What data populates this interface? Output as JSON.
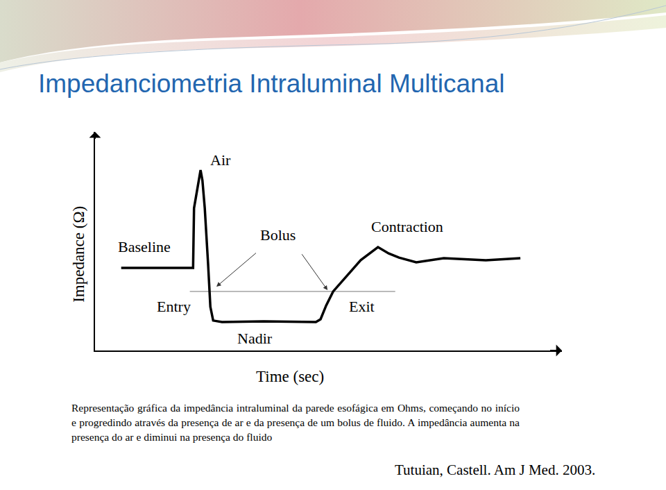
{
  "slide": {
    "title": "Impedanciometria Intraluminal Multicanal",
    "caption": "Representação gráfica da impedância intraluminal da parede esofágica em Ohms, começando no início e progredindo através da presença de ar e da presença de um bolus de fluido. A impedância aumenta na presença do ar e diminui na presença do fluido",
    "citation": "Tutuian, Castell. Am J Med. 2003."
  },
  "chart_data": {
    "type": "line",
    "xlabel": "Time (sec)",
    "ylabel": "Impedance (Ω)",
    "x": [
      5.6,
      21.0,
      21.2,
      22.0,
      22.6,
      23.0,
      23.5,
      24.2,
      24.7,
      25.3,
      27.2,
      36.1,
      47.3,
      48.3,
      49.5,
      51.0,
      53.9,
      56.9,
      60.6,
      62.9,
      65.1,
      68.8,
      74.7,
      83.7,
      91.1
    ],
    "values": [
      37.8,
      37.8,
      65.1,
      74.6,
      82.5,
      77.8,
      65.1,
      40.0,
      20.0,
      13.7,
      13.0,
      13.3,
      13.0,
      14.3,
      20.6,
      27.0,
      34.0,
      41.3,
      47.3,
      44.4,
      42.5,
      40.3,
      42.2,
      41.3,
      42.2
    ],
    "color": "#000000",
    "xlim": [
      0,
      100
    ],
    "ylim": [
      0,
      100
    ],
    "xticks": [],
    "yticks": [],
    "tick_labels": false,
    "grid": false,
    "reference_line": {
      "y": 27.0,
      "x": [
        20.3,
        64.3
      ]
    },
    "annotations": [
      "Air",
      "Baseline",
      "Bolus",
      "Contraction",
      "Entry",
      "Exit",
      "Nadir"
    ]
  }
}
